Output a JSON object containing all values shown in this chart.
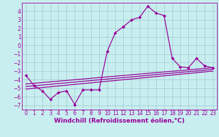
{
  "title": "",
  "xlabel": "Windchill (Refroidissement éolien,°C)",
  "background_color": "#c8eef0",
  "grid_color": "#a0c8d0",
  "line_color": "#990099",
  "marker_style": "D",
  "markersize": 2.0,
  "xlim": [
    -0.5,
    23.5
  ],
  "ylim": [
    -7.5,
    5.0
  ],
  "xticks": [
    0,
    1,
    2,
    3,
    4,
    5,
    6,
    7,
    8,
    9,
    10,
    11,
    12,
    13,
    14,
    15,
    16,
    17,
    18,
    19,
    20,
    21,
    22,
    23
  ],
  "yticks": [
    -7,
    -6,
    -5,
    -4,
    -3,
    -2,
    -1,
    0,
    1,
    2,
    3,
    4
  ],
  "series1_x": [
    0,
    1,
    2,
    3,
    4,
    5,
    6,
    7,
    8,
    9,
    10,
    11,
    12,
    13,
    14,
    15,
    16,
    17,
    18,
    19,
    20,
    21,
    22,
    23
  ],
  "series1_y": [
    -3.5,
    -4.7,
    -5.3,
    -6.3,
    -5.5,
    -5.3,
    -6.9,
    -5.2,
    -5.2,
    -5.2,
    -0.7,
    1.5,
    2.2,
    3.0,
    3.3,
    4.6,
    3.8,
    3.5,
    -1.5,
    -2.5,
    -2.6,
    -1.5,
    -2.4,
    -2.6
  ],
  "series2_x": [
    0,
    23
  ],
  "series2_y": [
    -4.5,
    -2.6
  ],
  "series3_x": [
    0,
    23
  ],
  "series3_y": [
    -4.8,
    -2.8
  ],
  "series4_x": [
    0,
    23
  ],
  "series4_y": [
    -5.1,
    -3.0
  ],
  "tick_fontsize": 5.5,
  "xlabel_fontsize": 6.5,
  "linewidth": 0.9
}
